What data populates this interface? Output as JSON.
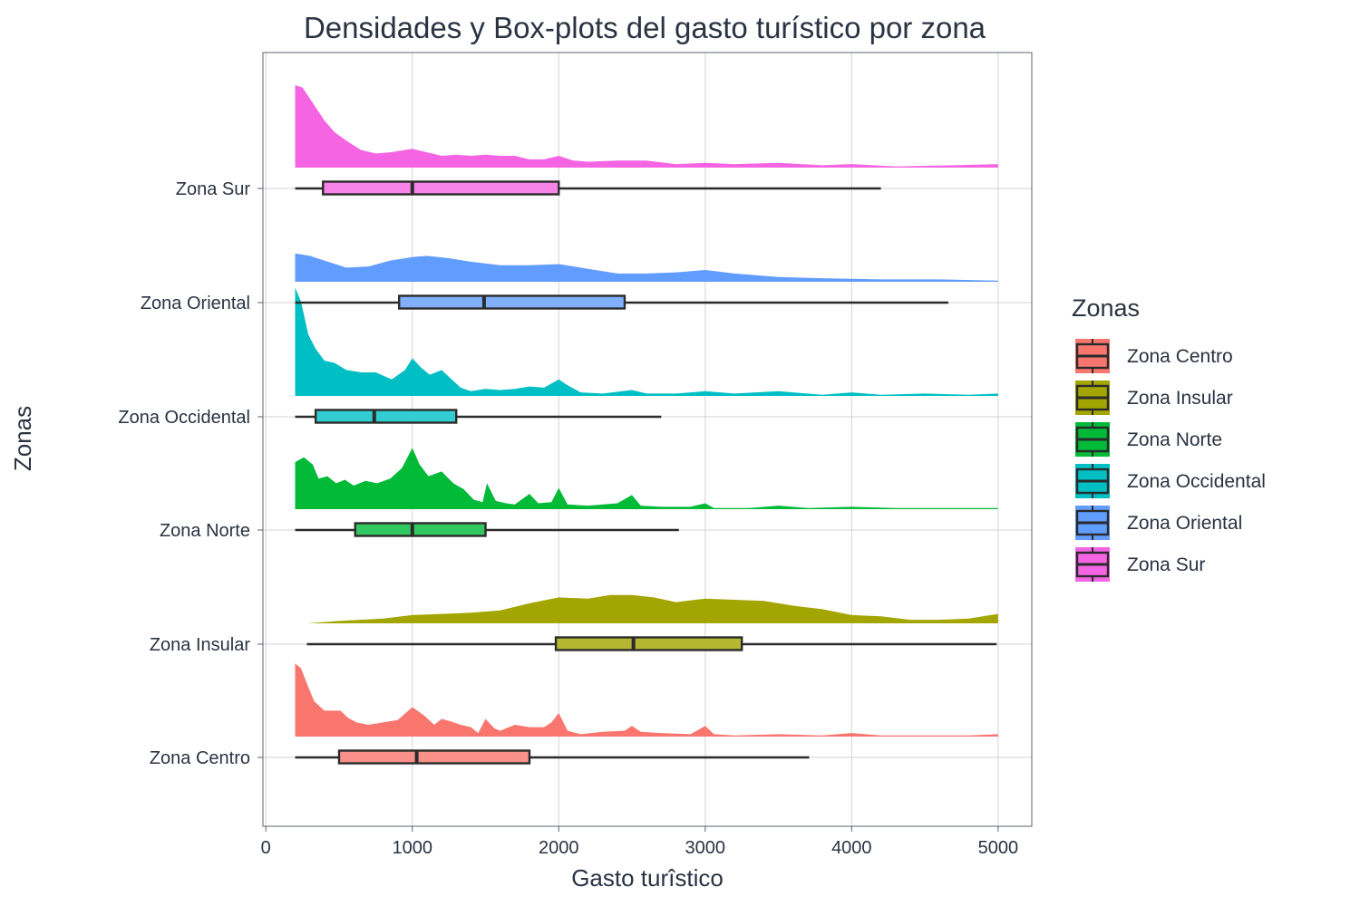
{
  "chart_data": {
    "type": "ridgeline-boxplot",
    "title": "Densidades y Box-plots del gasto turístico por zona",
    "xlabel": "Gasto turîstico",
    "ylabel": "Zonas",
    "xlim": [
      -20,
      5230
    ],
    "x_ticks": [
      0,
      1000,
      2000,
      3000,
      4000,
      5000
    ],
    "grid": true,
    "legend": {
      "title": "Zonas",
      "position": "right"
    },
    "series": [
      {
        "name": "Zona Centro",
        "color": "#f8766d",
        "box": {
          "whisker_low": 200,
          "q1": 500,
          "median": 1030,
          "q3": 1800,
          "whisker_high": 3710
        },
        "density": [
          [
            200,
            0.62
          ],
          [
            240,
            0.58
          ],
          [
            280,
            0.45
          ],
          [
            330,
            0.3
          ],
          [
            400,
            0.22
          ],
          [
            460,
            0.22
          ],
          [
            510,
            0.22
          ],
          [
            560,
            0.16
          ],
          [
            620,
            0.12
          ],
          [
            700,
            0.1
          ],
          [
            800,
            0.12
          ],
          [
            900,
            0.14
          ],
          [
            1000,
            0.25
          ],
          [
            1080,
            0.18
          ],
          [
            1150,
            0.1
          ],
          [
            1200,
            0.15
          ],
          [
            1260,
            0.13
          ],
          [
            1330,
            0.1
          ],
          [
            1400,
            0.08
          ],
          [
            1450,
            0.03
          ],
          [
            1500,
            0.15
          ],
          [
            1560,
            0.07
          ],
          [
            1600,
            0.05
          ],
          [
            1700,
            0.1
          ],
          [
            1800,
            0.08
          ],
          [
            1900,
            0.08
          ],
          [
            1950,
            0.12
          ],
          [
            2000,
            0.2
          ],
          [
            2060,
            0.05
          ],
          [
            2150,
            0.02
          ],
          [
            2300,
            0.04
          ],
          [
            2450,
            0.05
          ],
          [
            2500,
            0.09
          ],
          [
            2560,
            0.04
          ],
          [
            2700,
            0.03
          ],
          [
            2900,
            0.02
          ],
          [
            3000,
            0.09
          ],
          [
            3060,
            0.02
          ],
          [
            3200,
            0.01
          ],
          [
            3500,
            0.02
          ],
          [
            3800,
            0.01
          ],
          [
            4000,
            0.03
          ],
          [
            4200,
            0.01
          ],
          [
            4500,
            0.01
          ],
          [
            4800,
            0.01
          ],
          [
            5000,
            0.02
          ]
        ]
      },
      {
        "name": "Zona Insular",
        "color": "#a3a500",
        "box": {
          "whisker_low": 280,
          "q1": 1980,
          "median": 2510,
          "q3": 3250,
          "whisker_high": 4990
        },
        "density": [
          [
            280,
            0.0
          ],
          [
            500,
            0.02
          ],
          [
            800,
            0.04
          ],
          [
            1000,
            0.07
          ],
          [
            1200,
            0.08
          ],
          [
            1400,
            0.09
          ],
          [
            1600,
            0.11
          ],
          [
            1800,
            0.17
          ],
          [
            2000,
            0.22
          ],
          [
            2200,
            0.21
          ],
          [
            2350,
            0.24
          ],
          [
            2500,
            0.24
          ],
          [
            2650,
            0.22
          ],
          [
            2800,
            0.18
          ],
          [
            3000,
            0.21
          ],
          [
            3200,
            0.2
          ],
          [
            3400,
            0.19
          ],
          [
            3600,
            0.15
          ],
          [
            3800,
            0.12
          ],
          [
            4000,
            0.07
          ],
          [
            4200,
            0.06
          ],
          [
            4400,
            0.03
          ],
          [
            4600,
            0.03
          ],
          [
            4800,
            0.04
          ],
          [
            4950,
            0.07
          ],
          [
            5000,
            0.08
          ]
        ]
      },
      {
        "name": "Zona Norte",
        "color": "#00ba38",
        "box": {
          "whisker_low": 200,
          "q1": 610,
          "median": 1000,
          "q3": 1500,
          "whisker_high": 2820
        },
        "density": [
          [
            200,
            0.4
          ],
          [
            260,
            0.44
          ],
          [
            320,
            0.38
          ],
          [
            360,
            0.26
          ],
          [
            420,
            0.28
          ],
          [
            480,
            0.22
          ],
          [
            540,
            0.25
          ],
          [
            600,
            0.2
          ],
          [
            680,
            0.24
          ],
          [
            760,
            0.22
          ],
          [
            850,
            0.26
          ],
          [
            930,
            0.35
          ],
          [
            1000,
            0.52
          ],
          [
            1050,
            0.38
          ],
          [
            1110,
            0.28
          ],
          [
            1200,
            0.32
          ],
          [
            1280,
            0.22
          ],
          [
            1350,
            0.17
          ],
          [
            1420,
            0.08
          ],
          [
            1480,
            0.06
          ],
          [
            1510,
            0.22
          ],
          [
            1570,
            0.07
          ],
          [
            1640,
            0.05
          ],
          [
            1700,
            0.04
          ],
          [
            1800,
            0.13
          ],
          [
            1860,
            0.05
          ],
          [
            1950,
            0.06
          ],
          [
            2000,
            0.18
          ],
          [
            2060,
            0.04
          ],
          [
            2200,
            0.03
          ],
          [
            2400,
            0.05
          ],
          [
            2500,
            0.12
          ],
          [
            2560,
            0.03
          ],
          [
            2700,
            0.02
          ],
          [
            2900,
            0.02
          ],
          [
            3000,
            0.05
          ],
          [
            3060,
            0.01
          ],
          [
            3300,
            0.01
          ],
          [
            3500,
            0.03
          ],
          [
            3700,
            0.01
          ],
          [
            4000,
            0.02
          ],
          [
            4300,
            0.01
          ],
          [
            4600,
            0.01
          ],
          [
            5000,
            0.01
          ]
        ]
      },
      {
        "name": "Zona Occidental",
        "color": "#00bfc4",
        "box": {
          "whisker_low": 200,
          "q1": 340,
          "median": 740,
          "q3": 1300,
          "whisker_high": 2700
        },
        "density": [
          [
            200,
            0.92
          ],
          [
            240,
            0.8
          ],
          [
            290,
            0.52
          ],
          [
            340,
            0.4
          ],
          [
            400,
            0.3
          ],
          [
            470,
            0.28
          ],
          [
            550,
            0.22
          ],
          [
            650,
            0.2
          ],
          [
            750,
            0.2
          ],
          [
            860,
            0.14
          ],
          [
            950,
            0.22
          ],
          [
            1000,
            0.32
          ],
          [
            1060,
            0.24
          ],
          [
            1120,
            0.18
          ],
          [
            1200,
            0.22
          ],
          [
            1260,
            0.15
          ],
          [
            1330,
            0.07
          ],
          [
            1400,
            0.04
          ],
          [
            1500,
            0.06
          ],
          [
            1600,
            0.05
          ],
          [
            1700,
            0.06
          ],
          [
            1800,
            0.08
          ],
          [
            1900,
            0.07
          ],
          [
            2000,
            0.14
          ],
          [
            2060,
            0.09
          ],
          [
            2150,
            0.03
          ],
          [
            2300,
            0.02
          ],
          [
            2500,
            0.05
          ],
          [
            2600,
            0.02
          ],
          [
            2800,
            0.02
          ],
          [
            3000,
            0.04
          ],
          [
            3200,
            0.02
          ],
          [
            3500,
            0.04
          ],
          [
            3800,
            0.01
          ],
          [
            4000,
            0.03
          ],
          [
            4200,
            0.01
          ],
          [
            4500,
            0.02
          ],
          [
            4800,
            0.01
          ],
          [
            5000,
            0.02
          ]
        ]
      },
      {
        "name": "Zona Oriental",
        "color": "#619cff",
        "box": {
          "whisker_low": 200,
          "q1": 910,
          "median": 1490,
          "q3": 2450,
          "whisker_high": 4660
        },
        "density": [
          [
            200,
            0.24
          ],
          [
            300,
            0.22
          ],
          [
            400,
            0.18
          ],
          [
            550,
            0.12
          ],
          [
            700,
            0.13
          ],
          [
            850,
            0.18
          ],
          [
            1000,
            0.21
          ],
          [
            1100,
            0.22
          ],
          [
            1250,
            0.2
          ],
          [
            1400,
            0.17
          ],
          [
            1600,
            0.14
          ],
          [
            1800,
            0.14
          ],
          [
            2000,
            0.15
          ],
          [
            2200,
            0.11
          ],
          [
            2400,
            0.07
          ],
          [
            2600,
            0.07
          ],
          [
            2800,
            0.08
          ],
          [
            3000,
            0.1
          ],
          [
            3200,
            0.07
          ],
          [
            3500,
            0.04
          ],
          [
            3800,
            0.03
          ],
          [
            4200,
            0.02
          ],
          [
            4600,
            0.02
          ],
          [
            5000,
            0.01
          ]
        ]
      },
      {
        "name": "Zona Sur",
        "color": "#f564e3",
        "box": {
          "whisker_low": 200,
          "q1": 390,
          "median": 1000,
          "q3": 2000,
          "whisker_high": 4200
        },
        "density": [
          [
            200,
            0.7
          ],
          [
            250,
            0.68
          ],
          [
            320,
            0.55
          ],
          [
            400,
            0.4
          ],
          [
            470,
            0.3
          ],
          [
            560,
            0.22
          ],
          [
            650,
            0.15
          ],
          [
            750,
            0.12
          ],
          [
            850,
            0.13
          ],
          [
            1000,
            0.16
          ],
          [
            1100,
            0.13
          ],
          [
            1200,
            0.1
          ],
          [
            1300,
            0.11
          ],
          [
            1400,
            0.1
          ],
          [
            1500,
            0.11
          ],
          [
            1600,
            0.1
          ],
          [
            1700,
            0.1
          ],
          [
            1800,
            0.07
          ],
          [
            1900,
            0.07
          ],
          [
            2000,
            0.1
          ],
          [
            2100,
            0.06
          ],
          [
            2200,
            0.05
          ],
          [
            2400,
            0.06
          ],
          [
            2600,
            0.06
          ],
          [
            2800,
            0.03
          ],
          [
            3000,
            0.04
          ],
          [
            3200,
            0.03
          ],
          [
            3500,
            0.04
          ],
          [
            3800,
            0.02
          ],
          [
            4000,
            0.03
          ],
          [
            4300,
            0.01
          ],
          [
            4700,
            0.02
          ],
          [
            5000,
            0.03
          ]
        ]
      }
    ]
  }
}
